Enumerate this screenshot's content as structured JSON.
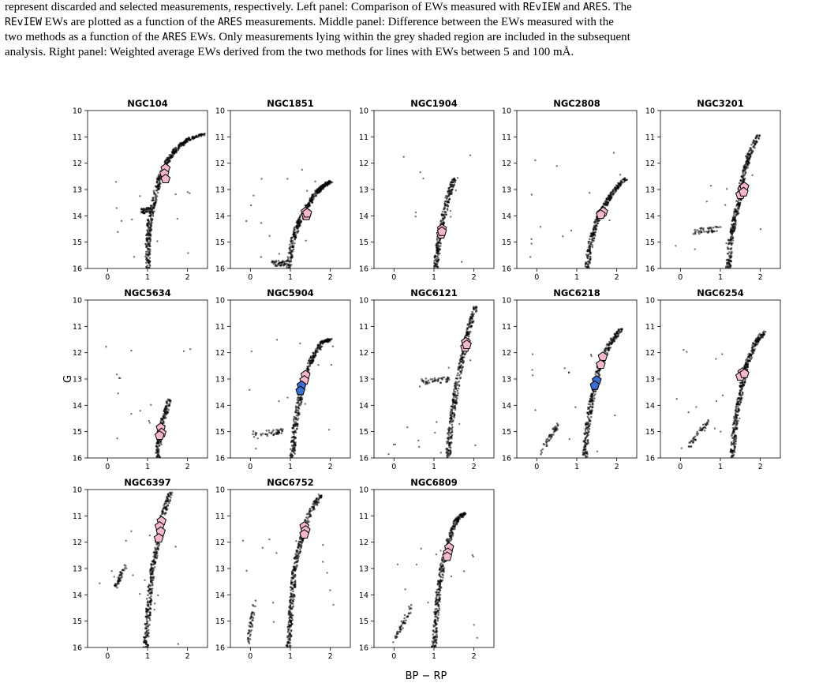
{
  "caption": {
    "line1": "represent discarded and selected measurements, respectively. Left panel: Comparison of EWs measured with ",
    "line1_code1": "REvIEW",
    "line1_mid": " and ",
    "line1_code2": "ARES",
    "line1_end": ". The",
    "line2_code1": "REvIEW",
    "line2_a": " EWs are plotted as a function of the ",
    "line2_code2": "ARES",
    "line2_b": " measurements. Middle panel: Difference between the EWs measured with the",
    "line3_a": "two methods as a function of the ",
    "line3_code": "ARES",
    "line3_b": " EWs. Only measurements lying within the grey shaded region are included in the subsequent",
    "line4": "analysis. Right panel: Weighted average EWs derived from the two methods for lines with EWs between 5 and 100 mÅ."
  },
  "colors": {
    "stars": "#000000",
    "selected_pink": "#f5b8c8",
    "selected_blue": "#3a6fd0",
    "marker_edge": "#000000"
  },
  "chart_data": {
    "type": "scatter",
    "xlabel": "BP − RP",
    "ylabel": "G",
    "xlim": [
      -0.5,
      2.5
    ],
    "ylim": [
      16,
      10
    ],
    "xticks": [
      0,
      1,
      2
    ],
    "yticks": [
      10,
      11,
      12,
      13,
      14,
      15,
      16
    ],
    "panels": [
      {
        "title": "NGC104",
        "branch": [
          [
            1.0,
            16
          ],
          [
            1.02,
            15
          ],
          [
            1.05,
            14.3
          ],
          [
            1.15,
            13.5
          ],
          [
            1.3,
            12.6
          ],
          [
            1.5,
            11.9
          ],
          [
            1.7,
            11.5
          ],
          [
            2.0,
            11.1
          ],
          [
            2.4,
            10.9
          ]
        ],
        "hb": [
          [
            0.85,
            13.8
          ],
          [
            1.05,
            13.8
          ]
        ],
        "targets_pink": [
          [
            1.45,
            12.2
          ],
          [
            1.42,
            12.4
          ],
          [
            1.45,
            12.6
          ]
        ],
        "targets_blue": []
      },
      {
        "title": "NGC1851",
        "branch": [
          [
            0.95,
            16
          ],
          [
            1.05,
            15
          ],
          [
            1.2,
            14.3
          ],
          [
            1.4,
            13.7
          ],
          [
            1.6,
            13.2
          ],
          [
            1.8,
            12.9
          ],
          [
            2.0,
            12.7
          ]
        ],
        "hb": [
          [
            0.55,
            15.8
          ],
          [
            0.95,
            15.8
          ]
        ],
        "targets_pink": [
          [
            1.38,
            13.85
          ],
          [
            1.4,
            14.0
          ],
          [
            1.42,
            13.9
          ]
        ],
        "targets_blue": []
      },
      {
        "title": "NGC1904",
        "branch": [
          [
            1.05,
            16
          ],
          [
            1.1,
            15.2
          ],
          [
            1.2,
            14.3
          ],
          [
            1.35,
            13.3
          ],
          [
            1.5,
            12.6
          ]
        ],
        "hb": [],
        "targets_pink": [
          [
            1.2,
            14.5
          ],
          [
            1.18,
            14.7
          ],
          [
            1.2,
            14.6
          ]
        ],
        "targets_blue": []
      },
      {
        "title": "NGC2808",
        "branch": [
          [
            1.25,
            16
          ],
          [
            1.35,
            15
          ],
          [
            1.5,
            14.2
          ],
          [
            1.7,
            13.6
          ],
          [
            1.9,
            13.1
          ],
          [
            2.2,
            12.6
          ]
        ],
        "hb": [],
        "targets_pink": [
          [
            1.62,
            13.9
          ],
          [
            1.66,
            13.85
          ],
          [
            1.6,
            13.95
          ]
        ],
        "targets_blue": []
      },
      {
        "title": "NGC3201",
        "branch": [
          [
            1.2,
            16
          ],
          [
            1.25,
            15
          ],
          [
            1.35,
            14.2
          ],
          [
            1.45,
            13.5
          ],
          [
            1.55,
            12.6
          ],
          [
            1.7,
            11.8
          ],
          [
            1.95,
            10.9
          ]
        ],
        "hb": [
          [
            0.3,
            14.6
          ],
          [
            1.0,
            14.5
          ]
        ],
        "targets_pink": [
          [
            1.55,
            13.0
          ],
          [
            1.5,
            13.2
          ],
          [
            1.6,
            12.9
          ],
          [
            1.58,
            13.1
          ]
        ],
        "targets_blue": []
      },
      {
        "title": "NGC5634",
        "branch": [
          [
            1.25,
            16
          ],
          [
            1.3,
            15.2
          ],
          [
            1.4,
            14.5
          ],
          [
            1.55,
            13.8
          ]
        ],
        "hb": [],
        "targets_pink": [
          [
            1.33,
            14.85
          ],
          [
            1.35,
            15.05
          ],
          [
            1.3,
            15.15
          ]
        ],
        "targets_blue": []
      },
      {
        "title": "NGC5904",
        "branch": [
          [
            1.05,
            16
          ],
          [
            1.1,
            15
          ],
          [
            1.2,
            14.0
          ],
          [
            1.35,
            13.0
          ],
          [
            1.55,
            12.2
          ],
          [
            1.8,
            11.6
          ],
          [
            2.0,
            11.5
          ]
        ],
        "hb": [
          [
            0.05,
            15.1
          ],
          [
            0.8,
            15.0
          ]
        ],
        "targets_pink": [
          [
            1.38,
            12.85
          ],
          [
            1.35,
            13.05
          ]
        ],
        "targets_blue": [
          [
            1.28,
            13.25
          ],
          [
            1.25,
            13.45
          ]
        ]
      },
      {
        "title": "NGC6121",
        "branch": [
          [
            1.35,
            16
          ],
          [
            1.4,
            15
          ],
          [
            1.5,
            14.0
          ],
          [
            1.6,
            13.0
          ],
          [
            1.75,
            12.0
          ],
          [
            1.85,
            11.2
          ],
          [
            2.05,
            10.2
          ]
        ],
        "hb": [
          [
            0.7,
            13.1
          ],
          [
            1.4,
            13.0
          ]
        ],
        "targets_pink": [
          [
            1.8,
            11.6
          ],
          [
            1.78,
            11.8
          ],
          [
            1.82,
            11.7
          ]
        ],
        "targets_blue": []
      },
      {
        "title": "NGC6218",
        "branch": [
          [
            1.2,
            16
          ],
          [
            1.25,
            15
          ],
          [
            1.35,
            14.0
          ],
          [
            1.45,
            13.2
          ],
          [
            1.6,
            12.4
          ],
          [
            1.85,
            11.6
          ],
          [
            2.1,
            11.1
          ]
        ],
        "hb": [
          [
            0.1,
            15.8
          ],
          [
            0.55,
            14.7
          ]
        ],
        "targets_pink": [
          [
            1.65,
            12.15
          ],
          [
            1.6,
            12.45
          ]
        ],
        "targets_blue": [
          [
            1.5,
            13.05
          ],
          [
            1.45,
            13.25
          ]
        ]
      },
      {
        "title": "NGC6254",
        "branch": [
          [
            1.3,
            16
          ],
          [
            1.35,
            15
          ],
          [
            1.45,
            14.0
          ],
          [
            1.55,
            13.2
          ],
          [
            1.65,
            12.5
          ],
          [
            1.85,
            11.7
          ],
          [
            2.1,
            11.2
          ]
        ],
        "hb": [
          [
            0.2,
            15.6
          ],
          [
            0.7,
            14.6
          ]
        ],
        "targets_pink": [
          [
            1.55,
            12.75
          ],
          [
            1.5,
            12.9
          ],
          [
            1.6,
            12.8
          ]
        ],
        "targets_blue": []
      },
      {
        "title": "NGC6397",
        "branch": [
          [
            0.95,
            16
          ],
          [
            1.0,
            15
          ],
          [
            1.05,
            14.0
          ],
          [
            1.12,
            13.0
          ],
          [
            1.25,
            12.0
          ],
          [
            1.4,
            10.9
          ],
          [
            1.6,
            10.0
          ]
        ],
        "hb": [
          [
            0.2,
            13.7
          ],
          [
            0.45,
            12.9
          ]
        ],
        "targets_pink": [
          [
            1.35,
            11.2
          ],
          [
            1.3,
            11.4
          ],
          [
            1.33,
            11.6
          ],
          [
            1.28,
            11.85
          ]
        ],
        "targets_blue": []
      },
      {
        "title": "NGC6752",
        "branch": [
          [
            0.95,
            16
          ],
          [
            1.0,
            15
          ],
          [
            1.05,
            14.0
          ],
          [
            1.1,
            13.0
          ],
          [
            1.25,
            12.0
          ],
          [
            1.45,
            11.0
          ],
          [
            1.75,
            10.2
          ]
        ],
        "hb": [
          [
            -0.05,
            15.8
          ],
          [
            0.1,
            14.3
          ]
        ],
        "targets_pink": [
          [
            1.35,
            11.4
          ],
          [
            1.38,
            11.55
          ],
          [
            1.35,
            11.7
          ]
        ],
        "targets_blue": []
      },
      {
        "title": "NGC6809",
        "branch": [
          [
            1.0,
            16
          ],
          [
            1.05,
            15
          ],
          [
            1.1,
            14.0
          ],
          [
            1.2,
            13.0
          ],
          [
            1.35,
            12.0
          ],
          [
            1.55,
            11.2
          ],
          [
            1.75,
            10.9
          ]
        ],
        "hb": [
          [
            0.05,
            15.6
          ],
          [
            0.45,
            14.4
          ]
        ],
        "targets_pink": [
          [
            1.38,
            12.2
          ],
          [
            1.35,
            12.4
          ],
          [
            1.33,
            12.55
          ]
        ],
        "targets_blue": []
      }
    ]
  }
}
